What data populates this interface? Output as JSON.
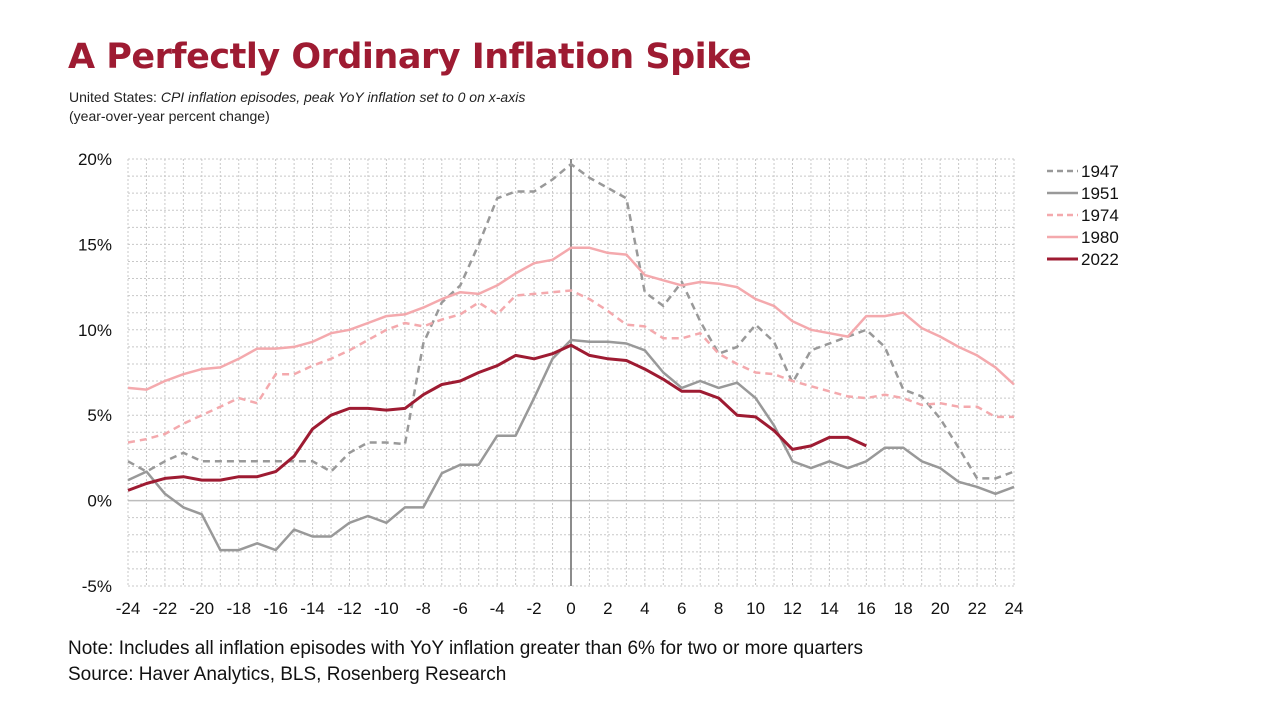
{
  "title": "A Perfectly Ordinary Inflation Spike",
  "subtitle": {
    "prefix": "United States: ",
    "italic": "CPI inflation episodes, peak YoY inflation set to 0 on x-axis",
    "line2": "(year-over-year percent change)"
  },
  "notes": {
    "note": "Note: Includes all inflation episodes with YoY inflation greater than 6% for two or more quarters",
    "source": "Source: Haver Analytics, BLS, Rosenberg Research"
  },
  "chart_data": {
    "type": "line",
    "title": "A Perfectly Ordinary Inflation Spike",
    "xlabel": "",
    "ylabel": "",
    "xlim": [
      -24,
      24
    ],
    "ylim": [
      -5,
      20
    ],
    "x_ticks": [
      -24,
      -22,
      -20,
      -18,
      -16,
      -14,
      -12,
      -10,
      -8,
      -6,
      -4,
      -2,
      0,
      2,
      4,
      6,
      8,
      10,
      12,
      14,
      16,
      18,
      20,
      22,
      24
    ],
    "y_ticks": [
      -5,
      0,
      5,
      10,
      15,
      20
    ],
    "y_tick_labels": [
      "-5%",
      "0%",
      "5%",
      "10%",
      "15%",
      "20%"
    ],
    "grid": true,
    "legend_position": "right",
    "series": [
      {
        "name": "1947",
        "color": "#999999",
        "style": "dashed",
        "x": [
          -24,
          -23,
          -22,
          -21,
          -20,
          -19,
          -18,
          -17,
          -16,
          -15,
          -14,
          -13,
          -12,
          -11,
          -10,
          -9,
          -8,
          -7,
          -6,
          -5,
          -4,
          -3,
          -2,
          -1,
          0,
          1,
          2,
          3,
          4,
          5,
          6,
          7,
          8,
          9,
          10,
          11,
          12,
          13,
          14,
          15,
          16,
          17,
          18,
          19,
          20,
          21,
          22,
          23,
          24
        ],
        "values": [
          2.3,
          1.7,
          2.3,
          2.8,
          2.3,
          2.3,
          2.3,
          2.3,
          2.3,
          2.3,
          2.3,
          1.7,
          2.8,
          3.4,
          3.4,
          3.3,
          9.2,
          11.6,
          12.6,
          15.0,
          17.7,
          18.1,
          18.1,
          18.8,
          19.7,
          18.9,
          18.3,
          17.7,
          12.2,
          11.4,
          12.8,
          10.5,
          8.6,
          9.0,
          10.3,
          9.3,
          6.9,
          8.8,
          9.2,
          9.6,
          10.0,
          9.0,
          6.5,
          6.1,
          4.8,
          3.1,
          1.3,
          1.3,
          1.7
        ]
      },
      {
        "name": "1951",
        "color": "#999999",
        "style": "solid",
        "x": [
          -24,
          -23,
          -22,
          -21,
          -20,
          -19,
          -18,
          -17,
          -16,
          -15,
          -14,
          -13,
          -12,
          -11,
          -10,
          -9,
          -8,
          -7,
          -6,
          -5,
          -4,
          -3,
          -2,
          -1,
          0,
          1,
          2,
          3,
          4,
          5,
          6,
          7,
          8,
          9,
          10,
          11,
          12,
          13,
          14,
          15,
          16,
          17,
          18,
          19,
          20,
          21,
          22,
          23,
          24
        ],
        "values": [
          1.2,
          1.7,
          0.4,
          -0.4,
          -0.8,
          -2.9,
          -2.9,
          -2.5,
          -2.9,
          -1.7,
          -2.1,
          -2.1,
          -1.3,
          -0.9,
          -1.3,
          -0.4,
          -0.4,
          1.6,
          2.1,
          2.1,
          3.8,
          3.8,
          6.0,
          8.3,
          9.4,
          9.3,
          9.3,
          9.2,
          8.8,
          7.5,
          6.6,
          7.0,
          6.6,
          6.9,
          6.0,
          4.4,
          2.3,
          1.9,
          2.3,
          1.9,
          2.3,
          3.1,
          3.1,
          2.3,
          1.9,
          1.1,
          0.8,
          0.4,
          0.8
        ]
      },
      {
        "name": "1974",
        "color": "#f4a9ad",
        "style": "dashed",
        "x": [
          -24,
          -23,
          -22,
          -21,
          -20,
          -19,
          -18,
          -17,
          -16,
          -15,
          -14,
          -13,
          -12,
          -11,
          -10,
          -9,
          -8,
          -7,
          -6,
          -5,
          -4,
          -3,
          -2,
          -1,
          0,
          1,
          2,
          3,
          4,
          5,
          6,
          7,
          8,
          9,
          10,
          11,
          12,
          13,
          14,
          15,
          16,
          17,
          18,
          19,
          20,
          21,
          22,
          23,
          24
        ],
        "values": [
          3.4,
          3.6,
          3.9,
          4.5,
          5.0,
          5.5,
          6.0,
          5.7,
          7.4,
          7.4,
          7.9,
          8.3,
          8.8,
          9.4,
          10.0,
          10.4,
          10.2,
          10.6,
          10.9,
          11.6,
          10.9,
          12.0,
          12.1,
          12.2,
          12.3,
          11.8,
          11.1,
          10.3,
          10.2,
          9.5,
          9.5,
          9.8,
          8.6,
          8.0,
          7.5,
          7.4,
          7.0,
          6.7,
          6.4,
          6.1,
          6.0,
          6.2,
          6.0,
          5.6,
          5.7,
          5.5,
          5.5,
          4.9,
          4.9
        ]
      },
      {
        "name": "1980",
        "color": "#f4a9ad",
        "style": "solid",
        "x": [
          -24,
          -23,
          -22,
          -21,
          -20,
          -19,
          -18,
          -17,
          -16,
          -15,
          -14,
          -13,
          -12,
          -11,
          -10,
          -9,
          -8,
          -7,
          -6,
          -5,
          -4,
          -3,
          -2,
          -1,
          0,
          1,
          2,
          3,
          4,
          5,
          6,
          7,
          8,
          9,
          10,
          11,
          12,
          13,
          14,
          15,
          16,
          17,
          18,
          19,
          20,
          21,
          22,
          23,
          24
        ],
        "values": [
          6.6,
          6.5,
          7.0,
          7.4,
          7.7,
          7.8,
          8.3,
          8.9,
          8.9,
          9.0,
          9.3,
          9.8,
          10.0,
          10.4,
          10.8,
          10.9,
          11.3,
          11.8,
          12.2,
          12.1,
          12.6,
          13.3,
          13.9,
          14.1,
          14.8,
          14.8,
          14.5,
          14.4,
          13.2,
          12.9,
          12.6,
          12.8,
          12.7,
          12.5,
          11.8,
          11.4,
          10.5,
          10.0,
          9.8,
          9.6,
          10.8,
          10.8,
          11.0,
          10.1,
          9.6,
          9.0,
          8.5,
          7.8,
          6.8
        ]
      },
      {
        "name": "2022",
        "color": "#9e1b32",
        "style": "solid",
        "x": [
          -24,
          -23,
          -22,
          -21,
          -20,
          -19,
          -18,
          -17,
          -16,
          -15,
          -14,
          -13,
          -12,
          -11,
          -10,
          -9,
          -8,
          -7,
          -6,
          -5,
          -4,
          -3,
          -2,
          -1,
          0,
          1,
          2,
          3,
          4,
          5,
          6,
          7,
          8,
          9,
          10,
          11,
          12,
          13,
          14,
          15,
          16
        ],
        "values": [
          0.6,
          1.0,
          1.3,
          1.4,
          1.2,
          1.2,
          1.4,
          1.4,
          1.7,
          2.6,
          4.2,
          5.0,
          5.4,
          5.4,
          5.3,
          5.4,
          6.2,
          6.8,
          7.0,
          7.5,
          7.9,
          8.5,
          8.3,
          8.6,
          9.1,
          8.5,
          8.3,
          8.2,
          7.7,
          7.1,
          6.4,
          6.4,
          6.0,
          5.0,
          4.9,
          4.1,
          3.0,
          3.2,
          3.7,
          3.7,
          3.2
        ]
      }
    ]
  }
}
